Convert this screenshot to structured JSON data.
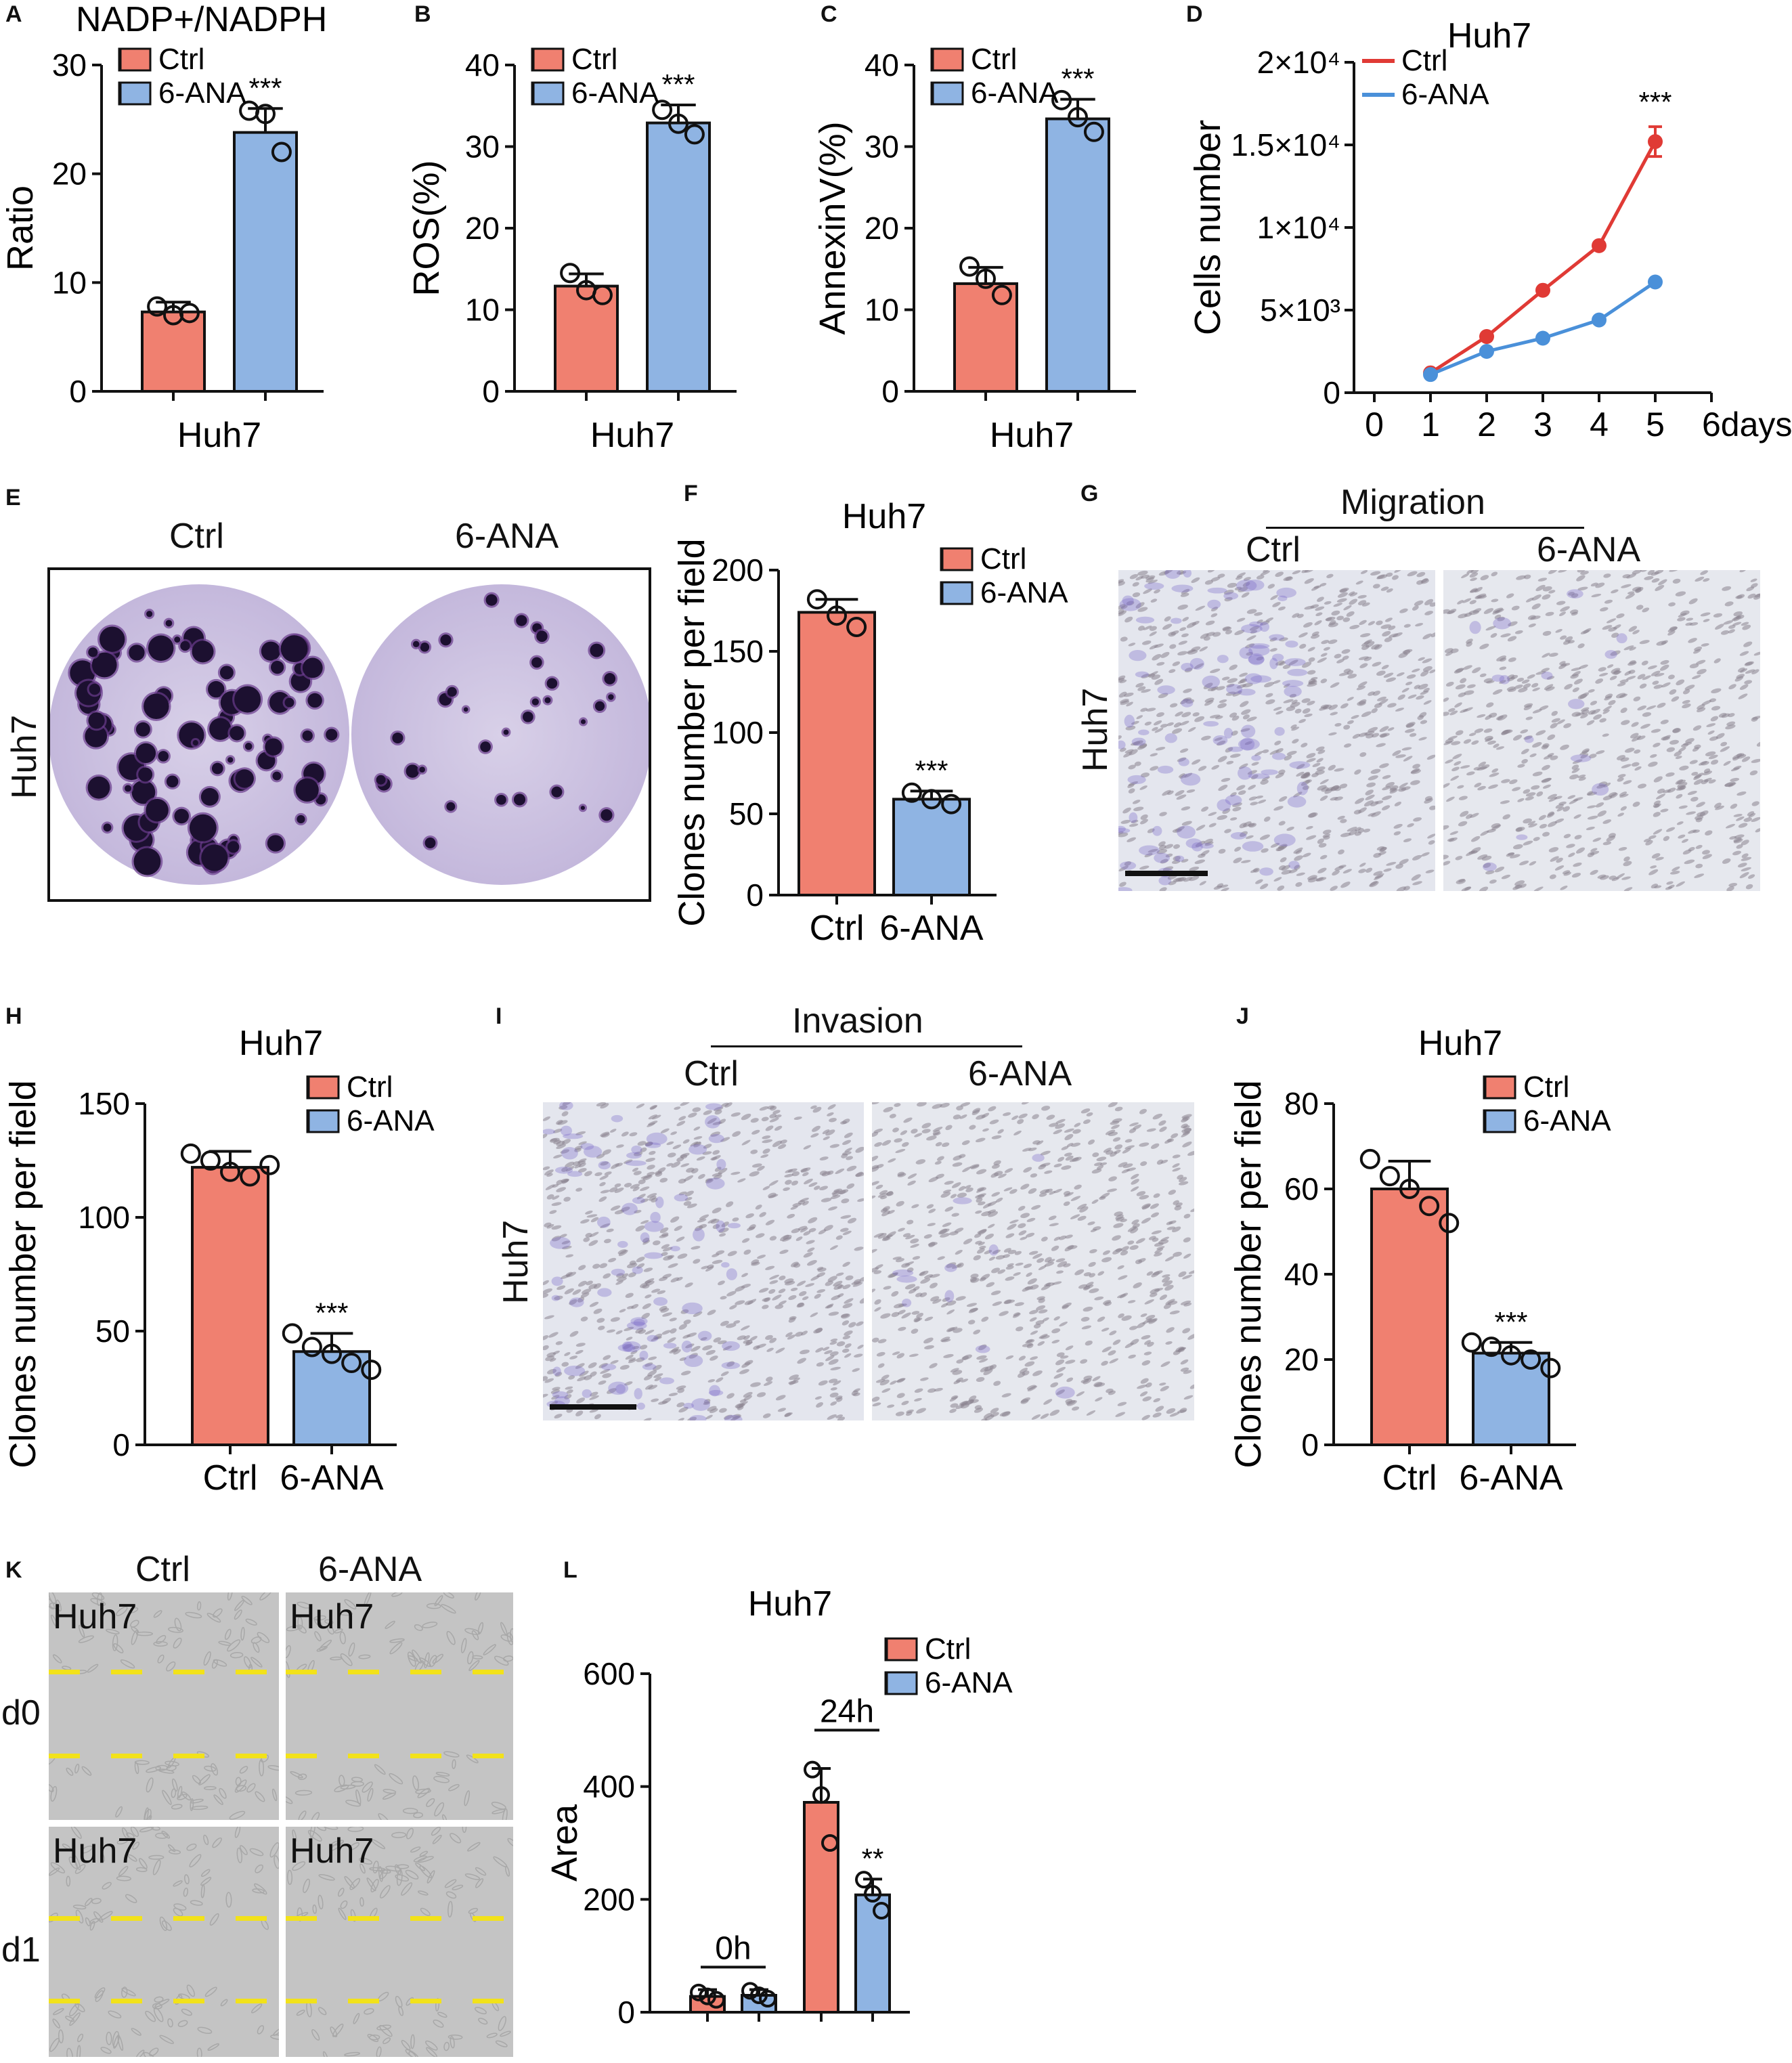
{
  "panels": {
    "A": "A",
    "B": "B",
    "C": "C",
    "D": "D",
    "E": "E",
    "F": "F",
    "G": "G",
    "H": "H",
    "I": "I",
    "J": "J",
    "K": "K",
    "L": "L"
  },
  "colors": {
    "ctrl": "#f08070",
    "ana": "#8fb4e3",
    "ctrl_line": "#e03a35",
    "ana_line": "#4a90d9"
  },
  "legend": {
    "ctrl": "Ctrl",
    "ana": "6-ANA"
  },
  "E": {
    "ctrl": "Ctrl",
    "ana": "6-ANA",
    "row": "Huh7"
  },
  "G": {
    "header": "Migration",
    "ctrl": "Ctrl",
    "ana": "6-ANA",
    "row": "Huh7"
  },
  "I": {
    "header": "Invasion",
    "ctrl": "Ctrl",
    "ana": "6-ANA",
    "row": "Huh7"
  },
  "K": {
    "ctrl": "Ctrl",
    "ana": "6-ANA",
    "tag": "Huh7",
    "d0": "d0",
    "d1": "d1"
  },
  "chart_data": [
    {
      "id": "A",
      "type": "bar",
      "title": "NADP+/NADPH",
      "xlabel": "Huh7",
      "ylabel": "Ratio",
      "ylim": [
        0,
        30
      ],
      "yticks": [
        0,
        10,
        20,
        30
      ],
      "categories": [
        "Ctrl",
        "6-ANA"
      ],
      "values": [
        7.3,
        23.8
      ],
      "errors": [
        0.9,
        2.2
      ],
      "points": [
        [
          7.8,
          7.0,
          7.2
        ],
        [
          25.8,
          25.5,
          22.0
        ]
      ],
      "significance": [
        "",
        "***"
      ],
      "legend": [
        "Ctrl",
        "6-ANA"
      ]
    },
    {
      "id": "B",
      "type": "bar",
      "title": "",
      "xlabel": "Huh7",
      "ylabel": "ROS(%)",
      "ylim": [
        0,
        40
      ],
      "yticks": [
        0,
        10,
        20,
        30,
        40
      ],
      "categories": [
        "Ctrl",
        "6-ANA"
      ],
      "values": [
        12.9,
        32.9
      ],
      "errors": [
        1.5,
        2.2
      ],
      "points": [
        [
          14.5,
          12.4,
          11.8
        ],
        [
          34.5,
          32.8,
          31.5
        ]
      ],
      "significance": [
        "",
        "***"
      ],
      "legend": [
        "Ctrl",
        "6-ANA"
      ]
    },
    {
      "id": "C",
      "type": "bar",
      "title": "",
      "xlabel": "Huh7",
      "ylabel": "AnnexinV(%)",
      "ylim": [
        0,
        40
      ],
      "yticks": [
        0,
        10,
        20,
        30,
        40
      ],
      "categories": [
        "Ctrl",
        "6-ANA"
      ],
      "values": [
        13.2,
        33.4
      ],
      "errors": [
        2.0,
        2.4
      ],
      "points": [
        [
          15.3,
          13.8,
          11.8
        ],
        [
          35.7,
          33.6,
          31.8
        ]
      ],
      "significance": [
        "",
        "***"
      ],
      "legend": [
        "Ctrl",
        "6-ANA"
      ]
    },
    {
      "id": "D",
      "type": "line",
      "title": "Huh7",
      "xlabel": "",
      "ylabel": "Cells number",
      "x": [
        1,
        2,
        3,
        4,
        5
      ],
      "xlim": [
        0,
        6
      ],
      "xticks": [
        "0",
        "1",
        "2",
        "3",
        "4",
        "5",
        "6days"
      ],
      "ylim": [
        0,
        20000
      ],
      "yticks": [
        "0",
        "5×10³",
        "1×10⁴",
        "1.5×10⁴",
        "2×10⁴"
      ],
      "ytick_values": [
        0,
        5000,
        10000,
        15000,
        20000
      ],
      "series": [
        {
          "name": "Ctrl",
          "values": [
            1200,
            3400,
            6200,
            8900,
            15200
          ],
          "errors": [
            0,
            0,
            0,
            0,
            900
          ]
        },
        {
          "name": "6-ANA",
          "values": [
            1100,
            2500,
            3300,
            4400,
            6700
          ],
          "errors": [
            0,
            0,
            0,
            0,
            0
          ]
        }
      ],
      "significance": "***"
    },
    {
      "id": "F",
      "type": "bar",
      "title": "Huh7",
      "xlabel": "",
      "ylabel": "Clones number per field",
      "ylim": [
        0,
        200
      ],
      "yticks": [
        0,
        50,
        100,
        150,
        200
      ],
      "categories": [
        "Ctrl",
        "6-ANA"
      ],
      "values": [
        174,
        59
      ],
      "errors": [
        8,
        5
      ],
      "points": [
        [
          182,
          172,
          165
        ],
        [
          63,
          59,
          56
        ]
      ],
      "significance": [
        "",
        "***"
      ],
      "legend": [
        "Ctrl",
        "6-ANA"
      ]
    },
    {
      "id": "H",
      "type": "bar",
      "title": "Huh7",
      "xlabel": "",
      "ylabel": "Clones number per field",
      "ylim": [
        0,
        150
      ],
      "yticks": [
        0,
        50,
        100,
        150
      ],
      "categories": [
        "Ctrl",
        "6-ANA"
      ],
      "values": [
        122,
        41
      ],
      "errors": [
        7,
        8
      ],
      "points": [
        [
          128,
          125,
          120,
          118,
          123
        ],
        [
          49,
          43,
          40,
          36,
          33
        ]
      ],
      "significance": [
        "",
        "***"
      ],
      "legend": [
        "Ctrl",
        "6-ANA"
      ]
    },
    {
      "id": "J",
      "type": "bar",
      "title": "Huh7",
      "xlabel": "",
      "ylabel": "Clones number per field",
      "ylim": [
        0,
        80
      ],
      "yticks": [
        0,
        20,
        40,
        60,
        80
      ],
      "categories": [
        "Ctrl",
        "6-ANA"
      ],
      "values": [
        60,
        21.5
      ],
      "errors": [
        6.5,
        2.5
      ],
      "points": [
        [
          67,
          63,
          60,
          56,
          52
        ],
        [
          24,
          23,
          21,
          20,
          18
        ]
      ],
      "significance": [
        "",
        "***"
      ],
      "legend": [
        "Ctrl",
        "6-ANA"
      ]
    },
    {
      "id": "L",
      "type": "bar",
      "title": "Huh7",
      "xlabel": "",
      "ylabel": "Area",
      "ylim": [
        0,
        600
      ],
      "yticks": [
        0,
        200,
        400,
        600
      ],
      "groups": [
        "0h",
        "24h"
      ],
      "categories": [
        "Ctrl",
        "6-ANA",
        "Ctrl",
        "6-ANA"
      ],
      "values": [
        28,
        30,
        372,
        208
      ],
      "errors": [
        12,
        10,
        60,
        28
      ],
      "points": [
        [
          35,
          28,
          22
        ],
        [
          38,
          30,
          24
        ],
        [
          430,
          385,
          300
        ],
        [
          235,
          210,
          180
        ]
      ],
      "significance": [
        "",
        "",
        "",
        "**"
      ],
      "legend": [
        "Ctrl",
        "6-ANA"
      ]
    }
  ]
}
